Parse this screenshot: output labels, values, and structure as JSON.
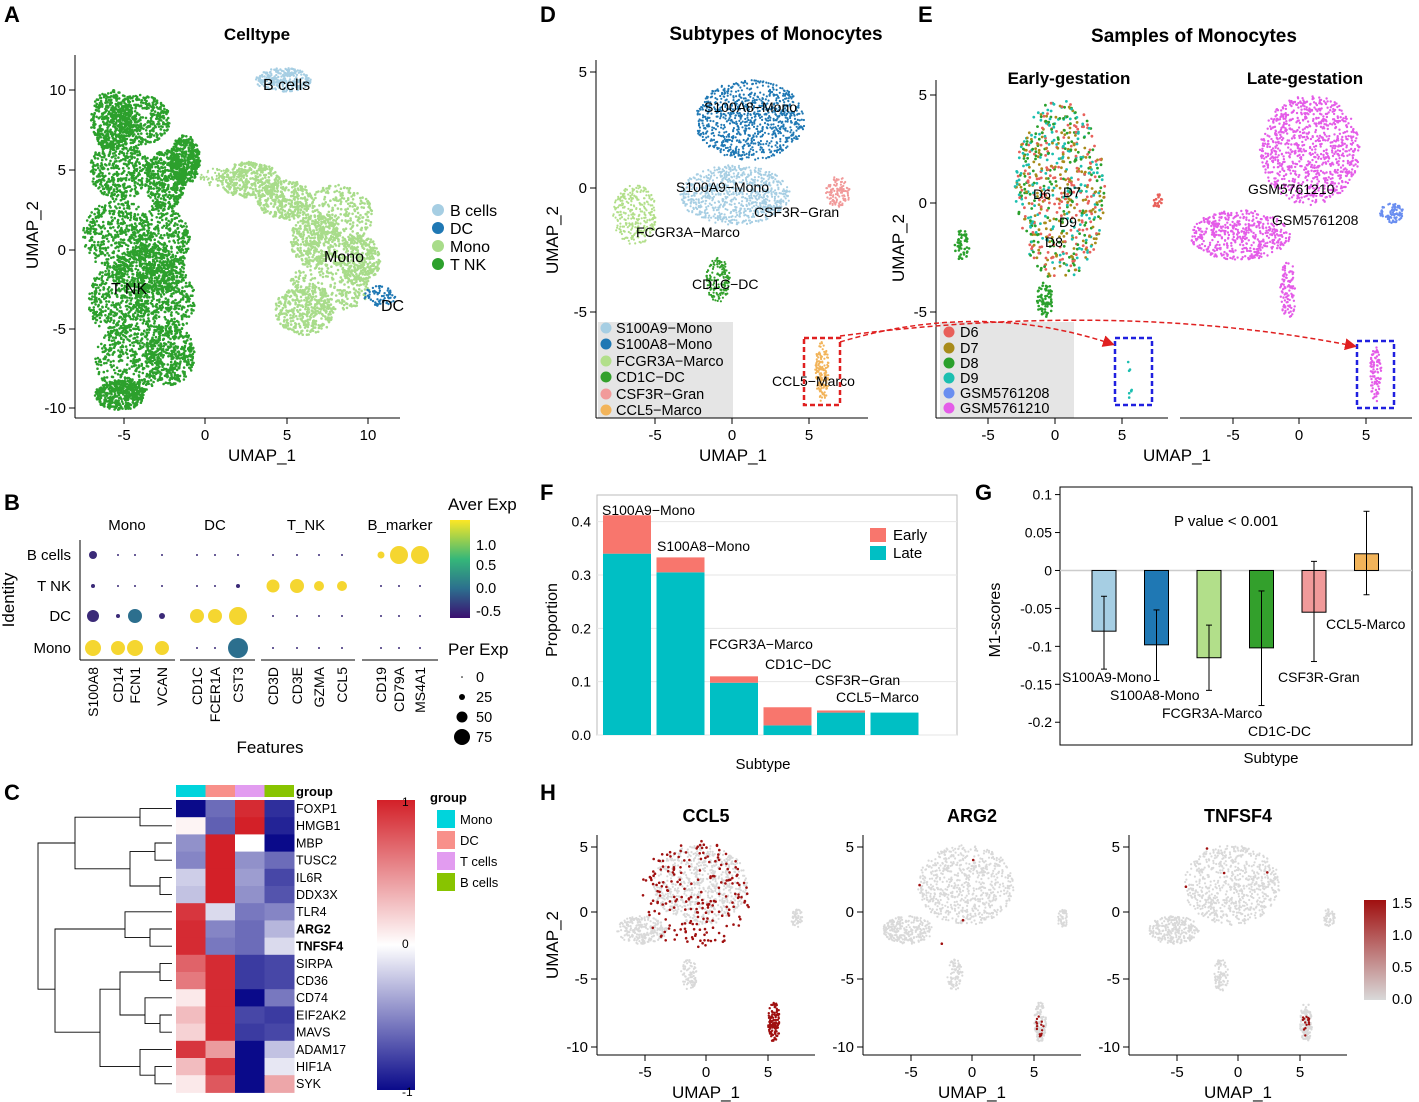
{
  "panel_letters": {
    "a": "A",
    "b": "B",
    "c": "C",
    "d": "D",
    "e": "E",
    "f": "F",
    "g": "G",
    "h": "H"
  },
  "colors": {
    "tnk": "#2ca02c",
    "mono": "#a8dc8a",
    "bcells": "#a6cee3",
    "dc": "#1f78b4",
    "s100a9": "#a6cee3",
    "s100a8": "#1f78b4",
    "fcgr3a": "#b2df8a",
    "cd1c": "#33a02c",
    "csf3r": "#f19a9a",
    "ccl5": "#f2b45a",
    "early": "#f8766d",
    "late": "#00bfc4",
    "d6": "#e8605a",
    "d7": "#a88b1a",
    "d8": "#2aa02c",
    "d9": "#1cbfb0",
    "gsm08": "#6a8ef0",
    "gsm10": "#e45ce8",
    "hm_high": "#d32028",
    "hm_mid": "#ffffff",
    "hm_low": "#0a0a8a",
    "feat_low": "#d9d9d9",
    "feat_high": "#a01010",
    "grp_mono": "#00d4dc",
    "grp_dc": "#f8908a",
    "grp_t": "#e29cf0",
    "grp_b": "#88c400"
  },
  "panelA": {
    "title": "Celltype",
    "xlabel": "UMAP_1",
    "ylabel": "UMAP_2",
    "xticks": [
      "-5",
      "0",
      "5",
      "10"
    ],
    "yticks": [
      "10",
      "5",
      "0",
      "-5",
      "-10"
    ],
    "labels": {
      "bcells": "B cells",
      "mono": "Mono",
      "tnk": "T NK",
      "dc": "DC"
    },
    "legend": [
      "B cells",
      "DC",
      "Mono",
      "T NK"
    ]
  },
  "panelB": {
    "groups": [
      "Mono",
      "DC",
      "T_NK",
      "B_marker"
    ],
    "identities": [
      "B cells",
      "T NK",
      "DC",
      "Mono"
    ],
    "features": [
      "S100A8",
      "CD14",
      "FCN1",
      "VCAN",
      "CD1C",
      "FCER1A",
      "CST3",
      "CD3D",
      "CD3E",
      "GZMA",
      "CCL5",
      "CD19",
      "CD79A",
      "MS4A1"
    ],
    "ylabel": "Identity",
    "xlabel": "Features",
    "legend_exp_title": "Aver Exp",
    "legend_exp_ticks": [
      "1.0",
      "0.5",
      "0.0",
      "-0.5"
    ],
    "legend_pct_title": "Per Exp",
    "legend_pct_ticks": [
      "0",
      "25",
      "50",
      "75"
    ]
  },
  "panelC": {
    "genes": [
      "FOXP1",
      "HMGB1",
      "MBP",
      "TUSC2",
      "IL6R",
      "DDX3X",
      "TLR4",
      "ARG2",
      "TNFSF4",
      "SIRPA",
      "CD36",
      "CD74",
      "EIF2AK2",
      "MAVS",
      "ADAM17",
      "HIF1A",
      "SYK"
    ],
    "bold_genes": [
      "ARG2",
      "TNFSF4"
    ],
    "group_title": "group",
    "groups": [
      "Mono",
      "DC",
      "T cells",
      "B cells"
    ],
    "colorbar_ticks": [
      "1",
      "0",
      "-1"
    ],
    "values": [
      [
        -1.0,
        -0.6,
        0.95,
        -0.85
      ],
      [
        0.05,
        -0.65,
        1.0,
        -0.9
      ],
      [
        -0.45,
        1.0,
        0.0,
        -1.0
      ],
      [
        -0.5,
        1.0,
        -0.45,
        -0.6
      ],
      [
        -0.2,
        1.0,
        -0.4,
        -0.75
      ],
      [
        -0.25,
        1.0,
        -0.45,
        -0.7
      ],
      [
        0.9,
        -0.15,
        -0.55,
        -0.5
      ],
      [
        0.95,
        -0.5,
        -0.6,
        -0.3
      ],
      [
        0.95,
        -0.55,
        -0.6,
        -0.15
      ],
      [
        0.7,
        0.95,
        -0.8,
        -0.75
      ],
      [
        0.6,
        0.95,
        -0.8,
        -0.75
      ],
      [
        0.1,
        0.95,
        -1.0,
        -0.55
      ],
      [
        0.3,
        0.95,
        -0.75,
        -0.8
      ],
      [
        0.2,
        0.95,
        -0.8,
        -0.75
      ],
      [
        0.9,
        0.45,
        -1.0,
        -0.25
      ],
      [
        0.3,
        0.9,
        -1.0,
        -0.1
      ],
      [
        0.1,
        0.75,
        -1.0,
        0.4
      ]
    ]
  },
  "panelD": {
    "title": "Subtypes of Monocytes",
    "xlabel": "UMAP_1",
    "ylabel": "UMAP_2",
    "xticks": [
      "-5",
      "0",
      "5"
    ],
    "yticks": [
      "5",
      "0",
      "-5"
    ],
    "labels": [
      "S100A8−Mono",
      "S100A9−Mono",
      "CSF3R−Gran",
      "FCGR3A−Marco",
      "CD1C−DC",
      "CCL5−Marco"
    ],
    "legend": [
      "S100A9−Mono",
      "S100A8−Mono",
      "FCGR3A−Marco",
      "CD1C−DC",
      "CSF3R−Gran",
      "CCL5−Marco"
    ]
  },
  "panelE": {
    "title": "Samples of Monocytes",
    "sub_early": "Early-gestation",
    "sub_late": "Late-gestation",
    "xlabel": "UMAP_1",
    "ylabel": "UMAP_2",
    "xticks": [
      "-5",
      "0",
      "5"
    ],
    "yticks": [
      "5",
      "0",
      "-5"
    ],
    "early_labels": [
      "D6",
      "D7",
      "D9",
      "D8"
    ],
    "late_labels": [
      "GSM5761210",
      "GSM5761208"
    ],
    "legend": [
      "D6",
      "D7",
      "D8",
      "D9",
      "GSM5761208",
      "GSM5761210"
    ]
  },
  "chart_data": [
    {
      "type": "bar",
      "panel": "F",
      "stacked": true,
      "categories": [
        "S100A9−Mono",
        "S100A8−Mono",
        "FCGR3A−Marco",
        "CD1C−DC",
        "CSF3R−Gran",
        "CCL5−Marco"
      ],
      "series": [
        {
          "name": "Late",
          "values": [
            0.34,
            0.305,
            0.098,
            0.018,
            0.042,
            0.042
          ]
        },
        {
          "name": "Early",
          "values": [
            0.072,
            0.028,
            0.012,
            0.034,
            0.004,
            0.0
          ]
        }
      ],
      "xlabel": "Subtype",
      "ylabel": "Proportion",
      "ylim": [
        0,
        0.45
      ],
      "yticks": [
        "0.0",
        "0.1",
        "0.2",
        "0.3",
        "0.4"
      ],
      "legend": [
        "Early",
        "Late"
      ]
    },
    {
      "type": "bar",
      "panel": "G",
      "categories": [
        "S100A9-Mono",
        "S100A8-Mono",
        "FCGR3A-Marco",
        "CD1C-DC",
        "CSF3R-Gran",
        "CCL5-Marco"
      ],
      "values": [
        -0.08,
        -0.098,
        -0.115,
        -0.102,
        -0.055,
        0.022
      ],
      "err_low": [
        -0.13,
        -0.145,
        -0.158,
        -0.178,
        -0.12,
        -0.032
      ],
      "err_high": [
        -0.034,
        -0.052,
        -0.072,
        -0.027,
        0.012,
        0.078
      ],
      "xlabel": "Subtype",
      "ylabel": "M1-scores",
      "ylim": [
        -0.23,
        0.11
      ],
      "yticks": [
        "0.1",
        "0.05",
        "0",
        "-0.05",
        "-0.1",
        "-0.15",
        "-0.2"
      ],
      "annotation": "P value < 0.001"
    }
  ],
  "panelH": {
    "genes": [
      "CCL5",
      "ARG2",
      "TNFSF4"
    ],
    "xlabel": "UMAP_1",
    "ylabel": "UMAP_2",
    "xticks": [
      "-5",
      "0",
      "5"
    ],
    "yticks": [
      "5",
      "0",
      "-5",
      "-10"
    ],
    "colorbar_ticks": [
      "1.5",
      "1.0",
      "0.5",
      "0.0"
    ]
  }
}
